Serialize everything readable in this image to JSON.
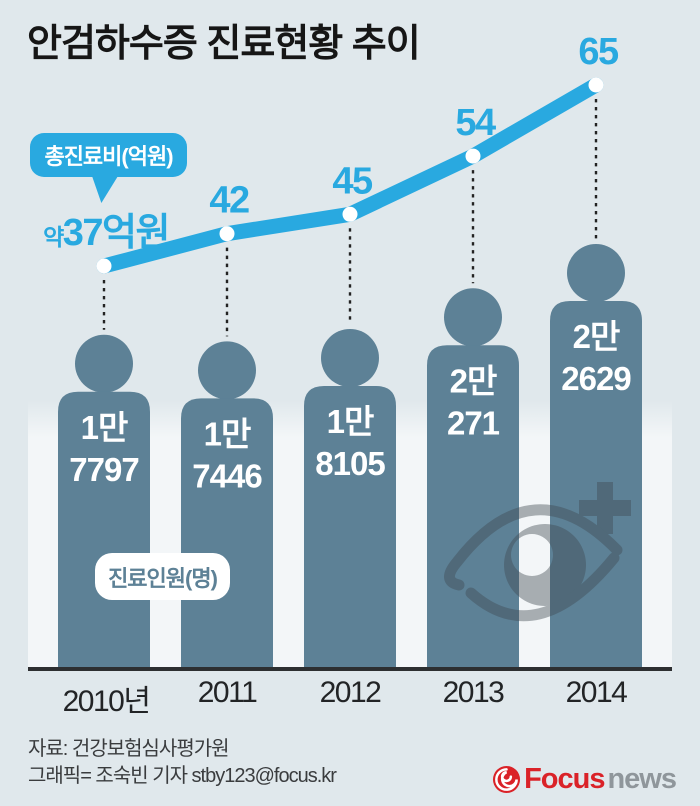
{
  "title": "안검하수증 진료현황 추이",
  "labels": {
    "cost_bubble": "총진료비(억원)",
    "patients_badge": "진료인원(명)"
  },
  "chart_data": {
    "type": "line",
    "title": "안검하수증 진료현황 추이",
    "categories": [
      "2010년",
      "2011",
      "2012",
      "2013",
      "2014"
    ],
    "series": [
      {
        "name": "총진료비(억원)",
        "type": "line",
        "unit": "억원",
        "values": [
          37,
          42,
          45,
          54,
          65
        ],
        "point_labels": [
          {
            "prefix": "약",
            "text": "37억원"
          },
          {
            "text": "42"
          },
          {
            "text": "45"
          },
          {
            "text": "54"
          },
          {
            "text": "65"
          }
        ],
        "color": "#29a9e0"
      },
      {
        "name": "진료인원(명)",
        "type": "pictogram-bar",
        "unit": "명",
        "values": [
          17797,
          17446,
          18105,
          20271,
          22629
        ],
        "value_lines": [
          [
            "1만",
            "7797"
          ],
          [
            "1만",
            "7446"
          ],
          [
            "1만",
            "8105"
          ],
          [
            "2만",
            "271"
          ],
          [
            "2만",
            "2629"
          ]
        ],
        "color": "#5d8196"
      }
    ],
    "ylim_line": [
      37,
      65
    ],
    "legend_position": "inline-callouts",
    "grid": false
  },
  "footer": {
    "source": "자료: 건강보험심사평가원",
    "credit": "그래픽= 조숙빈 기자 stby123@focus.kr"
  },
  "logo": {
    "brand": "Focus",
    "suffix": "news"
  },
  "icons": {
    "watermark": "eye-medical-cross-icon",
    "logo_mark": "focus-swirl-icon"
  },
  "colors": {
    "background": "#e0e8ec",
    "accent_blue": "#29a9e0",
    "figure_slate": "#5d8196",
    "dot_white": "#ffffff",
    "connector": "#222222",
    "baseline": "#2d2f31",
    "watermark": "#3f4a52",
    "logo_red": "#da2228",
    "logo_gray": "#8f969b",
    "title_text": "#161616"
  }
}
